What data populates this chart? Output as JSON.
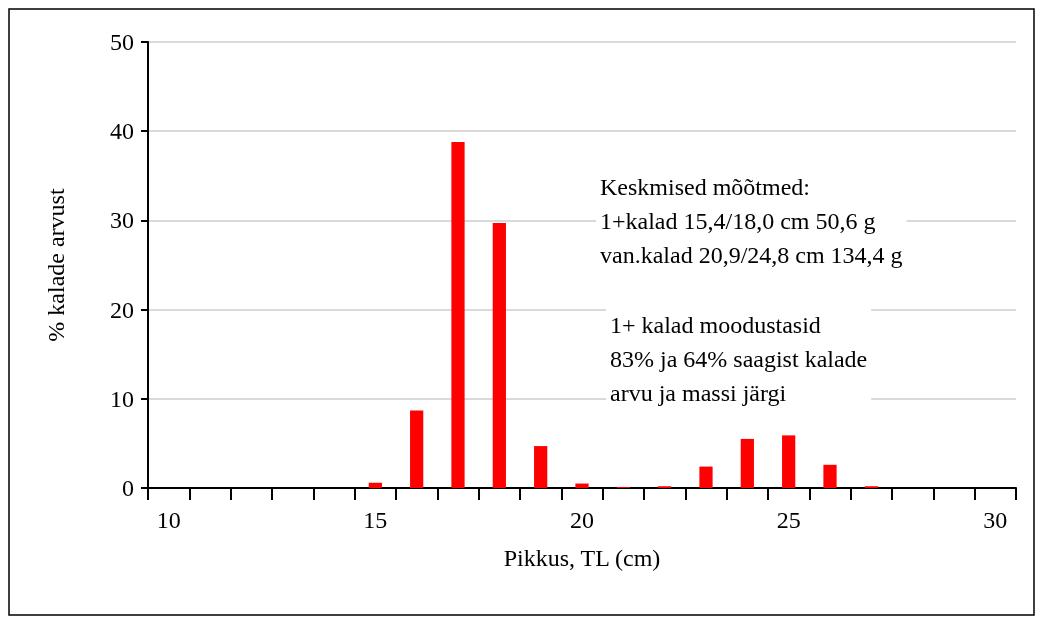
{
  "chart_data": {
    "type": "bar",
    "xlabel": "Pikkus, TL (cm)",
    "ylabel": "% kalade arvust",
    "categories": [
      "10",
      null,
      null,
      null,
      null,
      "15",
      null,
      null,
      null,
      null,
      "20",
      null,
      null,
      null,
      null,
      "25",
      null,
      null,
      null,
      null,
      "30"
    ],
    "values": [
      0,
      0,
      0,
      0,
      0,
      0.6,
      8.7,
      38.8,
      29.7,
      4.7,
      0.5,
      0.1,
      0.2,
      2.4,
      5.5,
      5.9,
      2.6,
      0.2,
      0,
      0,
      0
    ],
    "color": "#ff0000",
    "ylim": [
      0,
      50
    ],
    "yticks": [
      0,
      10,
      20,
      30,
      40,
      50
    ],
    "grid": "y",
    "annotations": [
      "Keskmised mõõtmed:\n1+kalad 15,4/18,0 cm 50,6 g\nvan.kalad 20,9/24,8 cm 134,4 g",
      "1+ kalad moodustasid\n83% ja 64% saagist kalade\narvu ja massi järgi"
    ]
  }
}
